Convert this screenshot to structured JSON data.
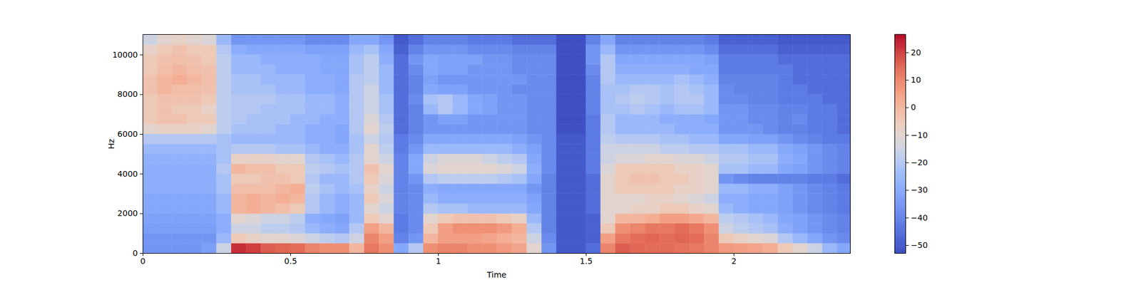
{
  "chart_data": {
    "type": "heatmap",
    "x_label": "Time",
    "y_label": "Hz",
    "xlim": [
      0,
      2.394
    ],
    "xticks": [
      0,
      0.5,
      1,
      1.5,
      2
    ],
    "ylim": [
      0,
      11025
    ],
    "yticks": [
      0,
      2000,
      4000,
      6000,
      8000,
      10000
    ],
    "color": "coolwarm",
    "x_edges": [
      0,
      0.05,
      0.1,
      0.15,
      0.2,
      0.25,
      0.3,
      0.35,
      0.4,
      0.45,
      0.5,
      0.55,
      0.6,
      0.65,
      0.7,
      0.75,
      0.8,
      0.85,
      0.9,
      0.95,
      1.0,
      1.05,
      1.1,
      1.15,
      1.2,
      1.25,
      1.3,
      1.35,
      1.4,
      1.45,
      1.5,
      1.55,
      1.6,
      1.65,
      1.7,
      1.75,
      1.8,
      1.85,
      1.9,
      1.95,
      2.0,
      2.05,
      2.1,
      2.15,
      2.2,
      2.25,
      2.3,
      2.35,
      2.4
    ],
    "y_edges": [
      0,
      500,
      1000,
      1500,
      2000,
      2500,
      3000,
      3500,
      4000,
      4500,
      5000,
      5500,
      6000,
      6500,
      7000,
      7500,
      8000,
      8500,
      9000,
      9500,
      10000,
      10500,
      11025
    ],
    "cells": [
      [
        -35,
        -35,
        -35,
        -35,
        -33,
        -15,
        22,
        20,
        16,
        15,
        14,
        10,
        8,
        8,
        0,
        12,
        8,
        -30,
        -20,
        8,
        10,
        10,
        8,
        8,
        6,
        4,
        -10,
        -35,
        -50,
        -50,
        -45,
        10,
        16,
        15,
        14,
        14,
        13,
        12,
        10,
        6,
        5,
        4,
        2,
        -5,
        -10,
        -15,
        -25,
        -30
      ],
      [
        -35,
        -35,
        -35,
        -35,
        -35,
        -25,
        -5,
        -8,
        -10,
        -10,
        -12,
        -15,
        -18,
        -20,
        -15,
        10,
        5,
        -40,
        -35,
        0,
        5,
        5,
        5,
        4,
        2,
        0,
        -15,
        -38,
        -50,
        -50,
        -48,
        5,
        12,
        14,
        15,
        14,
        15,
        14,
        10,
        -5,
        -8,
        -10,
        -12,
        -20,
        -25,
        -30,
        -35,
        -38
      ],
      [
        -33,
        -33,
        -33,
        -33,
        -33,
        -28,
        -15,
        -15,
        -18,
        -18,
        -20,
        -25,
        -28,
        -30,
        -20,
        5,
        0,
        -42,
        -38,
        -5,
        5,
        8,
        8,
        8,
        6,
        2,
        -20,
        -40,
        -50,
        -50,
        -48,
        -5,
        8,
        10,
        12,
        12,
        14,
        12,
        8,
        -15,
        -18,
        -20,
        -22,
        -28,
        -32,
        -35,
        -38,
        -40
      ],
      [
        -32,
        -32,
        -32,
        -32,
        -32,
        -28,
        -10,
        -12,
        -15,
        -15,
        -18,
        -28,
        -30,
        -32,
        -25,
        -5,
        -10,
        -42,
        -38,
        -10,
        -5,
        -3,
        -3,
        -3,
        -5,
        -8,
        -25,
        -40,
        -50,
        -50,
        -48,
        -10,
        0,
        0,
        2,
        5,
        5,
        3,
        0,
        -18,
        -20,
        -22,
        -25,
        -30,
        -32,
        -35,
        -38,
        -40
      ],
      [
        -30,
        -30,
        -30,
        -30,
        -30,
        -25,
        0,
        2,
        0,
        -2,
        -5,
        -20,
        -25,
        -28,
        -25,
        -10,
        -15,
        -40,
        -38,
        -20,
        -22,
        -22,
        -25,
        -25,
        -25,
        -25,
        -30,
        -40,
        -50,
        -50,
        -45,
        -10,
        -10,
        -8,
        -8,
        -5,
        -5,
        -8,
        -10,
        -25,
        -28,
        -30,
        -30,
        -32,
        -35,
        -38,
        -40,
        -42
      ],
      [
        -30,
        -30,
        -30,
        -30,
        -30,
        -25,
        0,
        2,
        0,
        2,
        0,
        -20,
        -25,
        -28,
        -25,
        -5,
        -12,
        -40,
        -38,
        -25,
        -28,
        -28,
        -28,
        -28,
        -28,
        -28,
        -32,
        -40,
        -50,
        -50,
        -45,
        -10,
        -10,
        -10,
        -8,
        -8,
        -10,
        -12,
        -15,
        -28,
        -28,
        -30,
        -30,
        -32,
        -35,
        -38,
        -40,
        -42
      ],
      [
        -28,
        -28,
        -28,
        -28,
        -28,
        -22,
        -2,
        -2,
        -2,
        0,
        2,
        -18,
        -22,
        -25,
        -22,
        -8,
        -15,
        -40,
        -38,
        -28,
        -30,
        -30,
        -30,
        -30,
        -30,
        -30,
        -35,
        -40,
        -50,
        -50,
        -45,
        -10,
        -5,
        -5,
        -5,
        -5,
        -8,
        -8,
        -10,
        -25,
        -25,
        -28,
        -28,
        -32,
        -35,
        -38,
        -40,
        -42
      ],
      [
        -28,
        -28,
        -28,
        -28,
        -28,
        -22,
        -5,
        -5,
        -3,
        -3,
        -5,
        -20,
        -25,
        -25,
        -20,
        -5,
        -12,
        -40,
        -35,
        -20,
        -18,
        -18,
        -18,
        -18,
        -20,
        -22,
        -30,
        -40,
        -50,
        -50,
        -45,
        -10,
        -5,
        -3,
        -3,
        -5,
        -5,
        -8,
        -10,
        -35,
        -38,
        -40,
        -40,
        -40,
        -40,
        -42,
        -42,
        -45
      ],
      [
        -28,
        -28,
        -28,
        -28,
        -28,
        -20,
        0,
        -2,
        -2,
        -5,
        -5,
        -18,
        -20,
        -22,
        -20,
        -3,
        -10,
        -40,
        -30,
        -12,
        -10,
        -10,
        -10,
        -10,
        -12,
        -15,
        -28,
        -38,
        -50,
        -50,
        -42,
        -12,
        -5,
        -5,
        -5,
        -5,
        -8,
        -8,
        -10,
        -22,
        -22,
        -25,
        -25,
        -30,
        -32,
        -35,
        -38,
        -40
      ],
      [
        -27,
        -27,
        -27,
        -27,
        -27,
        -22,
        -8,
        -8,
        -8,
        -10,
        -10,
        -20,
        -22,
        -25,
        -20,
        -10,
        -15,
        -40,
        -30,
        -15,
        -12,
        -12,
        -12,
        -15,
        -18,
        -20,
        -30,
        -38,
        -50,
        -50,
        -42,
        -15,
        -12,
        -12,
        -10,
        -10,
        -12,
        -12,
        -15,
        -20,
        -20,
        -22,
        -22,
        -28,
        -30,
        -35,
        -38,
        -40
      ],
      [
        -25,
        -25,
        -25,
        -25,
        -25,
        -22,
        -20,
        -20,
        -20,
        -22,
        -22,
        -25,
        -28,
        -28,
        -22,
        -10,
        -18,
        -42,
        -35,
        -25,
        -25,
        -25,
        -25,
        -25,
        -25,
        -28,
        -32,
        -38,
        -50,
        -50,
        -42,
        -15,
        -15,
        -15,
        -15,
        -18,
        -18,
        -20,
        -20,
        -22,
        -22,
        -25,
        -25,
        -30,
        -32,
        -35,
        -38,
        -40
      ],
      [
        -20,
        -20,
        -20,
        -20,
        -20,
        -22,
        -25,
        -25,
        -25,
        -25,
        -25,
        -28,
        -28,
        -30,
        -22,
        -15,
        -20,
        -42,
        -38,
        -30,
        -30,
        -30,
        -30,
        -30,
        -30,
        -32,
        -35,
        -38,
        -50,
        -50,
        -42,
        -18,
        -20,
        -20,
        -20,
        -22,
        -22,
        -25,
        -25,
        -30,
        -30,
        -32,
        -32,
        -35,
        -38,
        -40,
        -42,
        -42
      ],
      [
        -10,
        -8,
        -8,
        -8,
        -10,
        -18,
        -22,
        -22,
        -22,
        -25,
        -25,
        -28,
        -28,
        -30,
        -20,
        -10,
        -18,
        -45,
        -40,
        -35,
        -35,
        -35,
        -35,
        -35,
        -35,
        -35,
        -38,
        -38,
        -52,
        -52,
        -42,
        -20,
        -25,
        -25,
        -25,
        -25,
        -28,
        -28,
        -28,
        -35,
        -35,
        -35,
        -38,
        -40,
        -40,
        -42,
        -42,
        -45
      ],
      [
        -5,
        -3,
        -3,
        -5,
        -5,
        -18,
        -20,
        -22,
        -22,
        -22,
        -25,
        -25,
        -28,
        -28,
        -20,
        -12,
        -20,
        -45,
        -40,
        -35,
        -32,
        -32,
        -35,
        -35,
        -35,
        -35,
        -38,
        -38,
        -52,
        -52,
        -42,
        -20,
        -25,
        -25,
        -25,
        -28,
        -28,
        -28,
        -30,
        -35,
        -35,
        -38,
        -38,
        -40,
        -38,
        -42,
        -42,
        -45
      ],
      [
        -5,
        -3,
        -5,
        -5,
        -8,
        -18,
        -20,
        -20,
        -22,
        -22,
        -22,
        -25,
        -25,
        -28,
        -20,
        -15,
        -22,
        -45,
        -40,
        -25,
        -20,
        -25,
        -30,
        -32,
        -35,
        -35,
        -38,
        -38,
        -52,
        -52,
        -40,
        -22,
        -22,
        -20,
        -22,
        -25,
        -22,
        -22,
        -25,
        -35,
        -35,
        -38,
        -38,
        -40,
        -40,
        -42,
        -42,
        -45
      ],
      [
        -5,
        -3,
        -3,
        -3,
        -5,
        -18,
        -20,
        -20,
        -20,
        -22,
        -22,
        -25,
        -25,
        -28,
        -20,
        -15,
        -22,
        -45,
        -38,
        -22,
        -20,
        -25,
        -30,
        -32,
        -35,
        -35,
        -38,
        -38,
        -52,
        -52,
        -40,
        -22,
        -20,
        -18,
        -20,
        -22,
        -20,
        -20,
        -25,
        -38,
        -38,
        -40,
        -40,
        -42,
        -42,
        -42,
        -45,
        -45
      ],
      [
        -3,
        0,
        -2,
        -2,
        -3,
        -18,
        -22,
        -22,
        -22,
        -25,
        -25,
        -28,
        -28,
        -30,
        -20,
        -15,
        -25,
        -45,
        -40,
        -30,
        -32,
        -32,
        -35,
        -35,
        -35,
        -38,
        -38,
        -38,
        -52,
        -52,
        -40,
        -22,
        -22,
        -20,
        -20,
        -22,
        -20,
        -22,
        -25,
        -38,
        -40,
        -40,
        -40,
        -42,
        -42,
        -45,
        -45,
        -45
      ],
      [
        -3,
        0,
        2,
        0,
        -2,
        -18,
        -22,
        -22,
        -25,
        -25,
        -25,
        -28,
        -28,
        -30,
        -20,
        -18,
        -25,
        -45,
        -40,
        -32,
        -35,
        -35,
        -35,
        -35,
        -35,
        -35,
        -38,
        -38,
        -52,
        -52,
        -40,
        -20,
        -25,
        -25,
        -25,
        -25,
        -22,
        -25,
        -28,
        -40,
        -40,
        -40,
        -40,
        -42,
        -45,
        -45,
        -45,
        -45
      ],
      [
        -5,
        -2,
        0,
        -2,
        -3,
        -18,
        -25,
        -25,
        -25,
        -28,
        -28,
        -28,
        -30,
        -30,
        -22,
        -18,
        -25,
        -45,
        -38,
        -30,
        -32,
        -32,
        -35,
        -35,
        -35,
        -38,
        -38,
        -38,
        -52,
        -52,
        -38,
        -20,
        -28,
        -28,
        -28,
        -28,
        -28,
        -30,
        -30,
        -42,
        -42,
        -42,
        -42,
        -42,
        -45,
        -45,
        -45,
        -45
      ],
      [
        -5,
        -3,
        -2,
        -3,
        -5,
        -18,
        -25,
        -25,
        -28,
        -28,
        -28,
        -28,
        -30,
        -30,
        -22,
        -18,
        -28,
        -45,
        -35,
        -30,
        -32,
        -32,
        -32,
        -35,
        -35,
        -38,
        -38,
        -38,
        -52,
        -52,
        -35,
        -20,
        -30,
        -30,
        -30,
        -30,
        -30,
        -30,
        -32,
        -42,
        -42,
        -42,
        -42,
        -45,
        -45,
        -45,
        -45,
        -45
      ],
      [
        -8,
        -5,
        -3,
        -5,
        -5,
        -20,
        -28,
        -30,
        -30,
        -30,
        -30,
        -32,
        -32,
        -32,
        -25,
        -22,
        -30,
        -48,
        -40,
        -35,
        -35,
        -35,
        -38,
        -38,
        -38,
        -40,
        -40,
        -40,
        -52,
        -52,
        -35,
        -25,
        -35,
        -35,
        -35,
        -35,
        -35,
        -35,
        -38,
        -45,
        -45,
        -45,
        -45,
        -48,
        -48,
        -48,
        -48,
        -48
      ],
      [
        -15,
        -10,
        -8,
        -10,
        -12,
        -25,
        -35,
        -35,
        -35,
        -35,
        -35,
        -38,
        -38,
        -38,
        -30,
        -30,
        -35,
        -50,
        -45,
        -40,
        -40,
        -40,
        -42,
        -42,
        -42,
        -45,
        -45,
        -45,
        -52,
        -52,
        -40,
        -30,
        -40,
        -40,
        -40,
        -40,
        -40,
        -40,
        -42,
        -48,
        -48,
        -48,
        -48,
        -50,
        -50,
        -50,
        -50,
        -50
      ]
    ],
    "colorbar": {
      "lim": [
        -52.9,
        26.6
      ],
      "ticks": [
        {
          "value": -50,
          "label": "−50"
        },
        {
          "value": -40,
          "label": "−40"
        },
        {
          "value": -30,
          "label": "−30"
        },
        {
          "value": -20,
          "label": "−20"
        },
        {
          "value": -10,
          "label": "−10"
        },
        0,
        10,
        20
      ]
    }
  }
}
